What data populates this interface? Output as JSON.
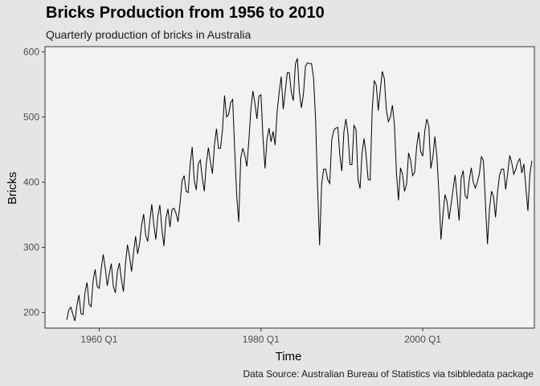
{
  "chart_data": {
    "type": "line",
    "title": "Bricks Production from 1956 to 2010",
    "subtitle": "Quarterly production of bricks in Australia",
    "caption": "Data Source: Australian Bureau of Statistics via tsibbledata package",
    "xlabel": "Time",
    "ylabel": "Bricks",
    "xlim": [
      1953.3,
      2013.8
    ],
    "ylim": [
      176,
      608
    ],
    "x_ticks": [
      {
        "value": 1960.0,
        "label": "1960 Q1"
      },
      {
        "value": 1980.0,
        "label": "1980 Q1"
      },
      {
        "value": 2000.0,
        "label": "2000 Q1"
      }
    ],
    "y_ticks": [
      200,
      300,
      400,
      500,
      600
    ],
    "grid": false,
    "x_start": 1956.0,
    "x_step": 0.25,
    "series": [
      {
        "values": [
          189,
          204,
          208,
          197,
          187,
          211,
          227,
          198,
          197,
          231,
          246,
          213,
          209,
          249,
          266,
          240,
          237,
          267,
          289,
          268,
          241,
          260,
          275,
          240,
          230,
          263,
          276,
          250,
          232,
          275,
          304,
          286,
          263,
          292,
          317,
          290,
          306,
          335,
          351,
          318,
          309,
          340,
          366,
          335,
          312,
          348,
          365,
          328,
          302,
          344,
          359,
          331,
          358,
          360,
          352,
          339,
          368,
          402,
          410,
          386,
          384,
          428,
          454,
          403,
          388,
          428,
          434,
          406,
          386,
          430,
          453,
          431,
          413,
          457,
          482,
          452,
          452,
          481,
          533,
          500,
          504,
          522,
          527,
          450,
          379,
          339,
          437,
          452,
          442,
          424,
          463,
          512,
          540,
          521,
          497,
          532,
          534,
          468,
          421,
          466,
          483,
          462,
          478,
          457,
          508,
          538,
          562,
          512,
          539,
          568,
          568,
          538,
          525,
          581,
          590,
          538,
          514,
          535,
          578,
          583,
          582,
          582,
          560,
          497,
          391,
          303,
          397,
          420,
          420,
          404,
          398,
          465,
          479,
          483,
          484,
          441,
          417,
          477,
          497,
          475,
          427,
          427,
          487,
          481,
          405,
          390,
          446,
          467,
          441,
          404,
          403,
          510,
          556,
          549,
          510,
          541,
          570,
          559,
          511,
          493,
          500,
          518,
          488,
          414,
          372,
          422,
          412,
          386,
          397,
          445,
          433,
          410,
          415,
          455,
          477,
          447,
          440,
          478,
          497,
          486,
          421,
          438,
          470,
          439,
          383,
          312,
          350,
          381,
          370,
          343,
          366,
          389,
          411,
          377,
          341,
          406,
          418,
          379,
          375,
          404,
          422,
          400,
          391,
          400,
          413,
          439,
          433,
          367,
          305,
          359,
          386,
          378,
          346,
          386,
          411,
          420,
          420,
          389,
          413,
          441,
          430,
          412,
          420,
          431,
          436,
          414,
          428,
          391,
          356,
          413,
          433
        ]
      }
    ]
  }
}
